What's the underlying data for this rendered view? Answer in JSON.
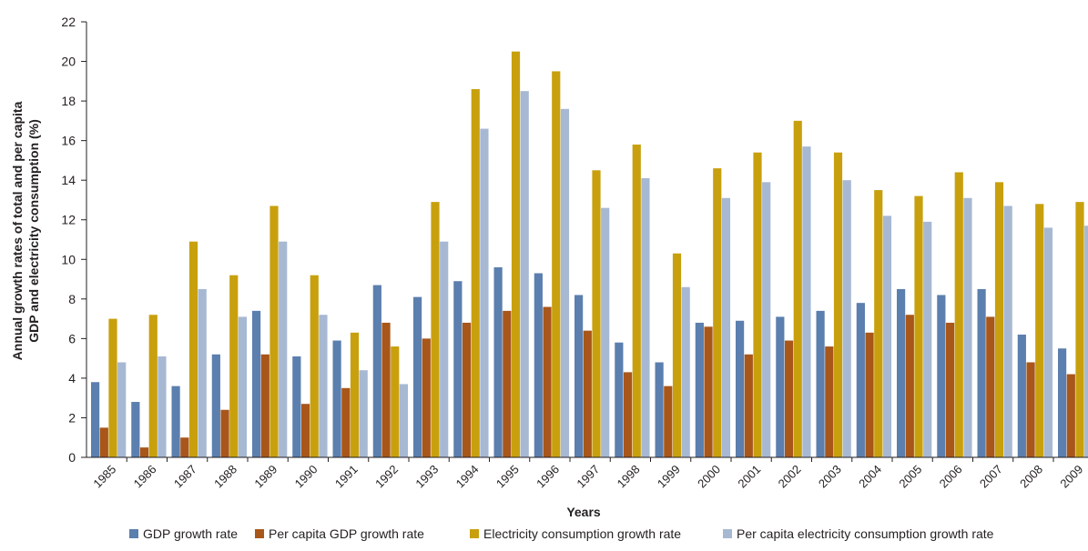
{
  "chart_data": {
    "type": "bar",
    "xlabel": "Years",
    "ylabel_lines": [
      "Annual growth rates of total and per capita",
      "GDP and electricity consumption  (%)"
    ],
    "ylim": [
      0,
      22
    ],
    "yticks": [
      "0",
      "2",
      "4",
      "6",
      "8",
      "10",
      "12",
      "14",
      "16",
      "18",
      "20",
      "22"
    ],
    "legend_position": "bottom",
    "grid": false,
    "categories": [
      "1985",
      "1986",
      "1987",
      "1988",
      "1989",
      "1990",
      "1991",
      "1992",
      "1993",
      "1994",
      "1995",
      "1996",
      "1997",
      "1998",
      "1999",
      "2000",
      "2001",
      "2002",
      "2003",
      "2004",
      "2005",
      "2006",
      "2007",
      "2008",
      "2009"
    ],
    "series": [
      {
        "name": "GDP growth rate",
        "color": "#5b7fae",
        "values": [
          3.8,
          2.8,
          3.6,
          5.2,
          7.4,
          5.1,
          5.9,
          8.7,
          8.1,
          8.9,
          9.6,
          9.3,
          8.2,
          5.8,
          4.8,
          6.8,
          6.9,
          7.1,
          7.4,
          7.8,
          8.5,
          8.2,
          8.5,
          6.2,
          5.5
        ]
      },
      {
        "name": "Per capita GDP growth rate",
        "color": "#a8561a",
        "values": [
          1.5,
          0.5,
          1.0,
          2.4,
          5.2,
          2.7,
          3.5,
          6.8,
          6.0,
          6.8,
          7.4,
          7.6,
          6.4,
          4.3,
          3.6,
          6.6,
          5.2,
          5.9,
          5.6,
          6.3,
          7.2,
          6.8,
          7.1,
          4.8,
          4.2
        ]
      },
      {
        "name": "Electricity consumption growth rate",
        "color": "#c8a00e",
        "values": [
          7.0,
          7.2,
          10.9,
          9.2,
          12.7,
          9.2,
          6.3,
          5.6,
          12.9,
          18.6,
          20.5,
          19.5,
          14.5,
          15.8,
          10.3,
          14.6,
          15.4,
          17.0,
          15.4,
          13.5,
          13.2,
          14.4,
          13.9,
          12.8,
          12.9
        ]
      },
      {
        "name": "Per capita electricity consumption growth rate",
        "color": "#a7b8d3",
        "values": [
          4.8,
          5.1,
          8.5,
          7.1,
          10.9,
          7.2,
          4.4,
          3.7,
          10.9,
          16.6,
          18.5,
          17.6,
          12.6,
          14.1,
          8.6,
          13.1,
          13.9,
          15.7,
          14.0,
          12.2,
          11.9,
          13.1,
          12.7,
          11.6,
          11.7
        ]
      }
    ]
  }
}
